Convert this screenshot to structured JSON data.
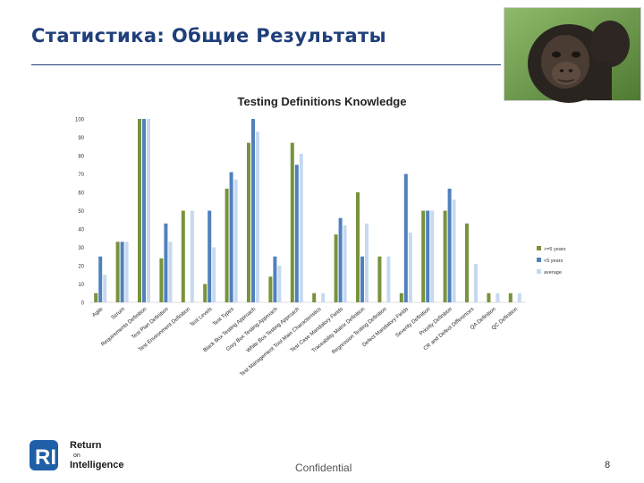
{
  "slide": {
    "title": "Статистика: Общие Результаты",
    "footer_text": "Confidential",
    "page_number": "8"
  },
  "logo": {
    "line1": "Return",
    "line2": "on",
    "line3": "Intelligence"
  },
  "photo": {
    "icon": "ape-photo"
  },
  "colors": {
    "title": "#1f3f7a",
    "series_1": "#77933c",
    "series_2": "#4f81bd",
    "series_3": "#c6d9f1",
    "logo_blue": "#1f5fa8"
  },
  "chart_data": {
    "type": "bar",
    "title": "Testing Definitions Knowledge",
    "xlabel": "",
    "ylabel": "",
    "ylim": [
      0,
      100
    ],
    "yticks": [
      0,
      10,
      20,
      30,
      40,
      50,
      60,
      70,
      80,
      90,
      100
    ],
    "grid": false,
    "legend": "right",
    "categories": [
      "Agile",
      "Scrum",
      "Requirements Definition",
      "Test Plan Definition",
      "Test Environment Definition",
      "Test Levels",
      "Test Types",
      "Black Box Testing Approach",
      "Grey Box Testing Approach",
      "White Box Testing Approach",
      "Test Management Tool Main Characteristics",
      "Test Case Mandatory Fields",
      "Traceability Matrix Definition",
      "Regression Testing Definition",
      "Defect Mandatory Fields",
      "Severity Definition",
      "Priority Definition",
      "CR and Defect Differences",
      "QA Definition",
      "QC Definition"
    ],
    "series": [
      {
        "name": ">=5 years",
        "values": [
          5,
          33,
          100,
          24,
          50,
          10,
          62,
          87,
          14,
          87,
          5,
          37,
          60,
          25,
          5,
          50,
          50,
          43,
          5,
          5
        ]
      },
      {
        "name": "<5 years",
        "values": [
          25,
          33,
          100,
          43,
          0,
          50,
          71,
          100,
          25,
          75,
          0,
          46,
          25,
          0,
          70,
          50,
          62,
          0,
          0,
          0
        ]
      },
      {
        "name": "average",
        "values": [
          15,
          33,
          100,
          33,
          50,
          30,
          67,
          93,
          20,
          81,
          5,
          42,
          43,
          25,
          38,
          50,
          56,
          21,
          5,
          5
        ]
      }
    ]
  }
}
